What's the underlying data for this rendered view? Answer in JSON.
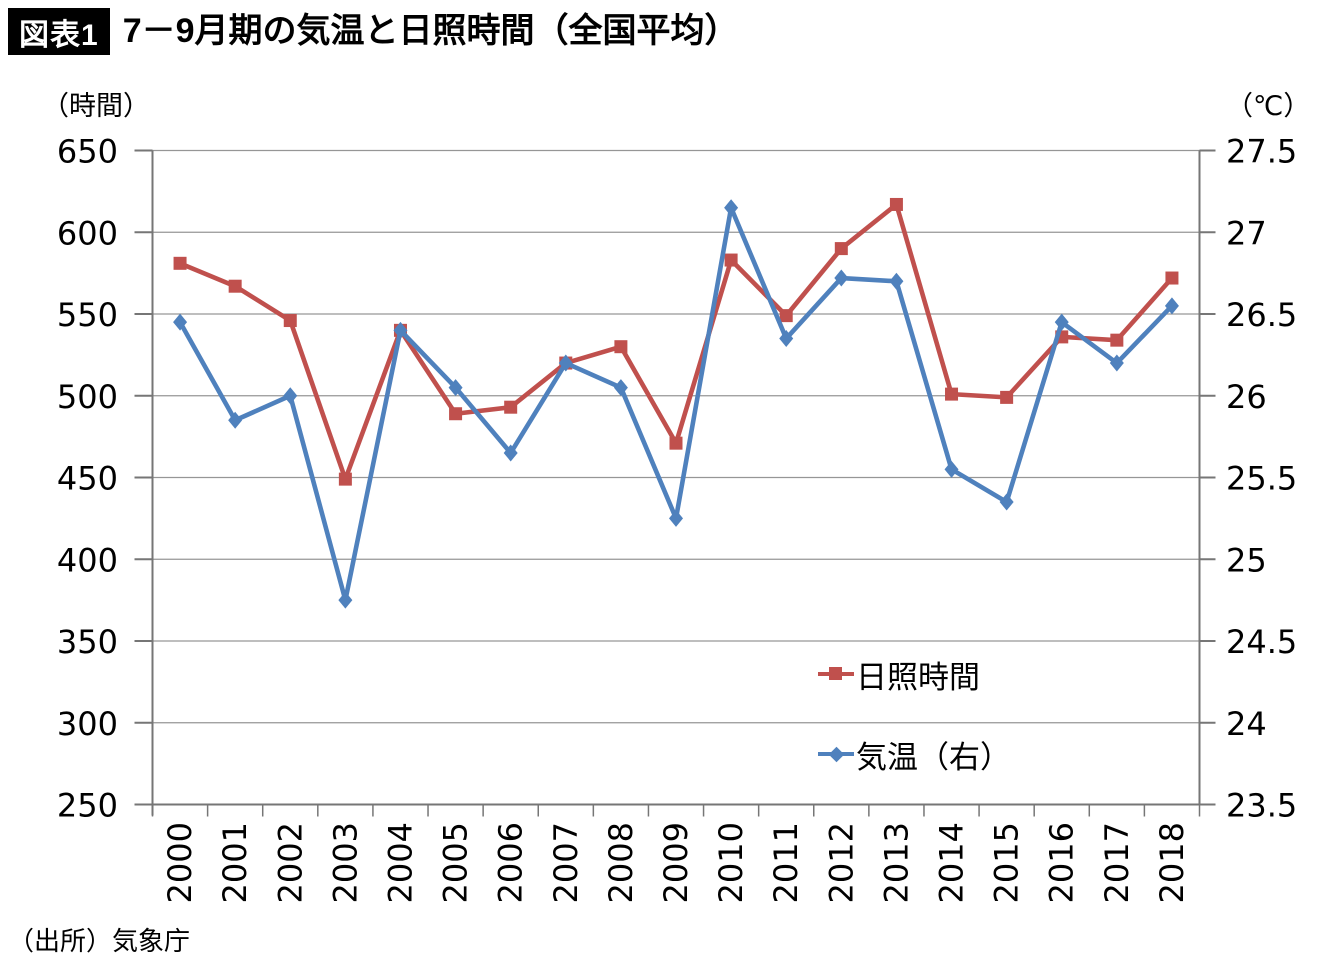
{
  "header": {
    "badge": "図表1",
    "title": "7－9月期の気温と日照時間（全国平均）"
  },
  "axes": {
    "left_unit": "（時間）",
    "right_unit": "（℃）"
  },
  "source": "（出所）気象庁",
  "colors": {
    "sunshine": "#C0504D",
    "temperature": "#4F81BD",
    "gridline": "#969696",
    "axis": "#767676",
    "text": "#000000",
    "badge_bg": "#000000",
    "badge_fg": "#ffffff"
  },
  "chart_data": {
    "type": "line",
    "title": "7－9月期の気温と日照時間（全国平均）",
    "categories": [
      "2000",
      "2001",
      "2002",
      "2003",
      "2004",
      "2005",
      "2006",
      "2007",
      "2008",
      "2009",
      "2010",
      "2011",
      "2012",
      "2013",
      "2014",
      "2015",
      "2016",
      "2017",
      "2018"
    ],
    "series": [
      {
        "name": "日照時間",
        "axis": "left",
        "unit": "時間",
        "color": "#C0504D",
        "marker": "square",
        "values": [
          581,
          567,
          546,
          449,
          540,
          489,
          493,
          520,
          530,
          471,
          583,
          549,
          590,
          617,
          501,
          499,
          536,
          534,
          572
        ]
      },
      {
        "name": "気温（右）",
        "axis": "right",
        "unit": "℃",
        "color": "#4F81BD",
        "marker": "diamond",
        "values": [
          26.45,
          25.85,
          26.0,
          24.75,
          26.4,
          26.05,
          25.65,
          26.2,
          26.05,
          25.25,
          27.15,
          26.35,
          26.72,
          26.7,
          25.55,
          25.35,
          26.45,
          26.2,
          26.55
        ]
      }
    ],
    "left_axis": {
      "unit": "（時間）",
      "min": 250,
      "max": 650,
      "tick_step": 50,
      "ticks": [
        650,
        600,
        550,
        500,
        450,
        400,
        350,
        300,
        250
      ]
    },
    "right_axis": {
      "unit": "（℃）",
      "min": 23.5,
      "max": 27.5,
      "tick_step": 0.5,
      "ticks": [
        27.5,
        27,
        26.5,
        26,
        25.5,
        25,
        24.5,
        24,
        23.5
      ]
    },
    "grid": true,
    "legend_position": "inside-right"
  }
}
